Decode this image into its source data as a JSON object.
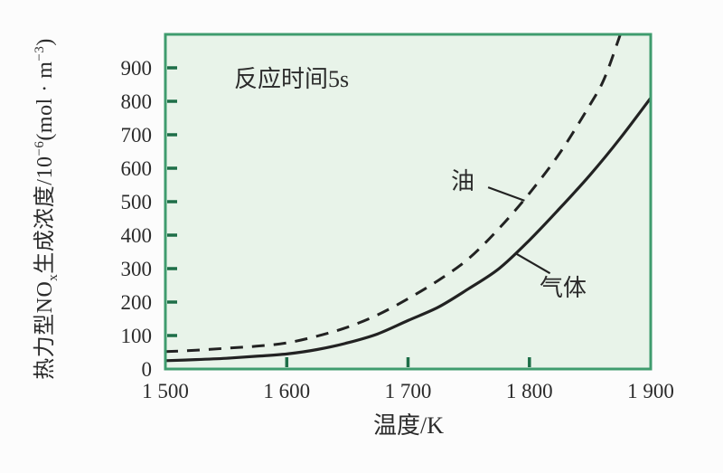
{
  "chart_data": {
    "type": "line",
    "title": "",
    "annotation": "反应时间5s",
    "xlabel": "温度/K",
    "ylabel": "热力型NOx生成浓度/10⁻⁶(mol·m⁻³)",
    "ylabel_parts": {
      "p1": "热力型NO",
      "sub1": "x",
      "p2": "生成浓度/10",
      "sup1": "−6",
      "p3": "(mol · m",
      "sup2": "−3",
      "p4": ")"
    },
    "xlim": [
      1500,
      1900
    ],
    "ylim": [
      0,
      1000
    ],
    "grid": false,
    "legend_position": "inline labels with leader lines",
    "xticks": [
      {
        "value": 1500,
        "label": "1 500"
      },
      {
        "value": 1600,
        "label": "1 600"
      },
      {
        "value": 1700,
        "label": "1 700"
      },
      {
        "value": 1800,
        "label": "1 800"
      },
      {
        "value": 1900,
        "label": "1 900"
      }
    ],
    "yticks": [
      {
        "value": 0,
        "label": "0"
      },
      {
        "value": 100,
        "label": "100"
      },
      {
        "value": 200,
        "label": "200"
      },
      {
        "value": 300,
        "label": "300"
      },
      {
        "value": 400,
        "label": "400"
      },
      {
        "value": 500,
        "label": "500"
      },
      {
        "value": 600,
        "label": "600"
      },
      {
        "value": 700,
        "label": "700"
      },
      {
        "value": 800,
        "label": "800"
      },
      {
        "value": 900,
        "label": "900"
      }
    ],
    "series": [
      {
        "name": "油",
        "line": "dashed",
        "points": [
          [
            1500,
            52
          ],
          [
            1525,
            56
          ],
          [
            1550,
            62
          ],
          [
            1575,
            68
          ],
          [
            1600,
            78
          ],
          [
            1625,
            98
          ],
          [
            1650,
            125
          ],
          [
            1675,
            162
          ],
          [
            1700,
            210
          ],
          [
            1725,
            265
          ],
          [
            1750,
            330
          ],
          [
            1775,
            420
          ],
          [
            1800,
            525
          ],
          [
            1825,
            645
          ],
          [
            1850,
            790
          ],
          [
            1862,
            870
          ],
          [
            1875,
            1000
          ]
        ]
      },
      {
        "name": "气体",
        "line": "solid",
        "points": [
          [
            1500,
            25
          ],
          [
            1525,
            28
          ],
          [
            1550,
            32
          ],
          [
            1575,
            38
          ],
          [
            1600,
            45
          ],
          [
            1625,
            58
          ],
          [
            1650,
            78
          ],
          [
            1675,
            105
          ],
          [
            1700,
            145
          ],
          [
            1725,
            185
          ],
          [
            1750,
            240
          ],
          [
            1775,
            300
          ],
          [
            1800,
            385
          ],
          [
            1825,
            480
          ],
          [
            1850,
            580
          ],
          [
            1875,
            690
          ],
          [
            1900,
            810
          ]
        ]
      }
    ],
    "leaders": [
      {
        "series": "油",
        "label_end": [
          1766,
          543
        ],
        "curve_end": [
          1796,
          503
        ]
      },
      {
        "series": "气体",
        "label_end": [
          1817,
          286
        ],
        "curve_end": [
          1789,
          345
        ]
      }
    ],
    "colors": {
      "plot_bg": "#e8f3e9",
      "plot_border": "#3f9c6e",
      "tick": "#1e6e48",
      "curve": "#222222",
      "text": "#2b2b2b"
    }
  }
}
